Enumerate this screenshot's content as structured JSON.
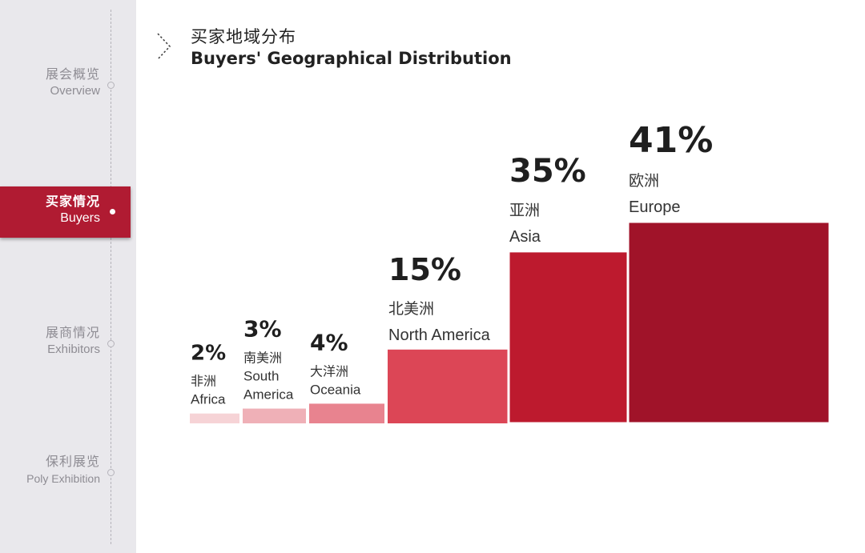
{
  "sidebar": {
    "items": [
      {
        "zh": "展会概览",
        "en": "Overview",
        "active": false
      },
      {
        "zh": "买家情况",
        "en": "Buyers",
        "active": true
      },
      {
        "zh": "展商情况",
        "en": "Exhibitors",
        "active": false
      },
      {
        "zh": "保利展览",
        "en": "Poly Exhibition",
        "active": false
      }
    ]
  },
  "header": {
    "title_zh": "买家地域分布",
    "title_en": "Buyers' Geographical Distribution"
  },
  "chart_data": {
    "type": "bar",
    "categories": [
      "Africa",
      "South America",
      "Oceania",
      "North America",
      "Asia",
      "Europe"
    ],
    "values": [
      2,
      3,
      4,
      15,
      35,
      41
    ],
    "unit": "%",
    "labels": [
      {
        "pct": "2%",
        "zh": "非洲",
        "en": [
          "Africa"
        ]
      },
      {
        "pct": "3%",
        "zh": "南美洲",
        "en": [
          "South",
          "America"
        ]
      },
      {
        "pct": "4%",
        "zh": "大洋洲",
        "en": [
          "Oceania"
        ]
      },
      {
        "pct": "15%",
        "zh": "北美洲",
        "en": [
          "North America"
        ]
      },
      {
        "pct": "35%",
        "zh": "亚洲",
        "en": [
          "Asia"
        ]
      },
      {
        "pct": "41%",
        "zh": "欧洲",
        "en": [
          "Europe"
        ]
      }
    ],
    "colors": [
      "#f6d3d6",
      "#efb0b7",
      "#e8838f",
      "#dc4656",
      "#bd1a2e",
      "#a01329"
    ],
    "grid": false,
    "legend": "none"
  }
}
